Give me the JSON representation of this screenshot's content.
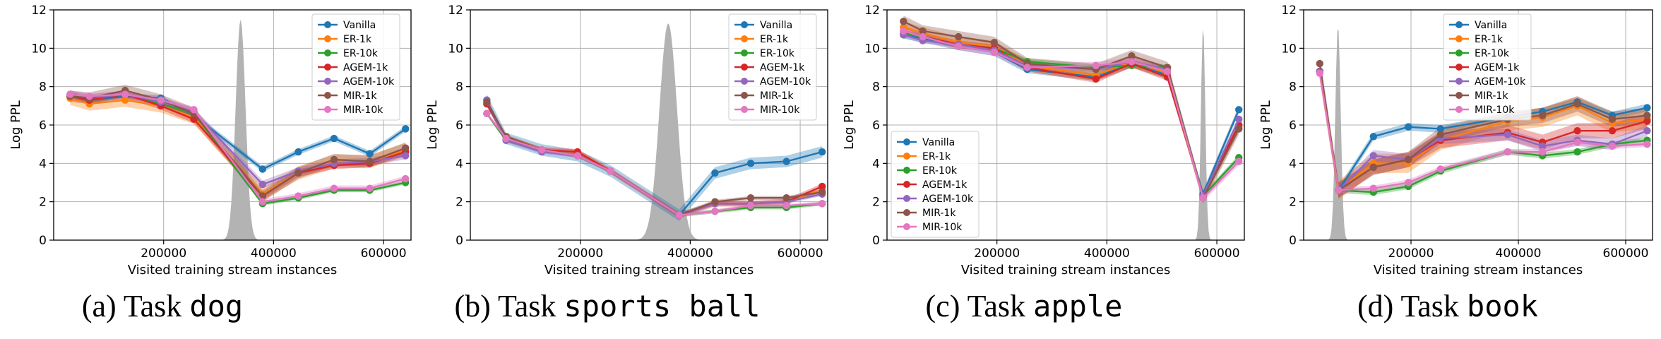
{
  "series_colors": {
    "Vanilla": "#1f77b4",
    "ER-1k": "#ff7f0e",
    "ER-10k": "#2ca02c",
    "AGEM-1k": "#d62728",
    "AGEM-10k": "#9467bd",
    "MIR-1k": "#8c564b",
    "MIR-10k": "#e377c2"
  },
  "density_color": "#b3b3b3",
  "chart_data": [
    {
      "type": "line",
      "caption_lead": "(a) Task ",
      "caption_task": "dog",
      "xlabel": "Visited training stream instances",
      "ylabel": "Log PPL",
      "xlim": [
        0,
        650000
      ],
      "ylim": [
        0,
        12
      ],
      "xticks": [
        200000,
        400000,
        600000
      ],
      "yticks": [
        0,
        2,
        4,
        6,
        8,
        10,
        12
      ],
      "grid": true,
      "legend_position": "top-right",
      "density_peak": 340000,
      "density_width": 9000,
      "density_height": 11.5,
      "series": [
        {
          "name": "Vanilla",
          "x": [
            30000,
            65000,
            130000,
            195000,
            255000,
            380000,
            445000,
            510000,
            575000,
            640000
          ],
          "y": [
            7.6,
            7.3,
            7.5,
            7.4,
            6.5,
            3.7,
            4.6,
            5.3,
            4.5,
            5.8
          ],
          "band": 0.15
        },
        {
          "name": "ER-1k",
          "x": [
            30000,
            65000,
            130000,
            195000,
            255000,
            380000,
            445000,
            510000,
            575000,
            640000
          ],
          "y": [
            7.4,
            7.1,
            7.3,
            7.0,
            6.4,
            2.4,
            3.5,
            4.1,
            4.1,
            4.7
          ],
          "band": 0.35
        },
        {
          "name": "ER-10k",
          "x": [
            30000,
            65000,
            130000,
            195000,
            255000,
            380000,
            445000,
            510000,
            575000,
            640000
          ],
          "y": [
            7.5,
            7.3,
            7.6,
            7.1,
            6.6,
            1.9,
            2.2,
            2.6,
            2.6,
            3.0
          ],
          "band": 0.1
        },
        {
          "name": "AGEM-1k",
          "x": [
            30000,
            65000,
            130000,
            195000,
            255000,
            380000,
            445000,
            510000,
            575000,
            640000
          ],
          "y": [
            7.5,
            7.3,
            7.6,
            7.0,
            6.3,
            2.3,
            3.5,
            3.9,
            4.0,
            4.6
          ],
          "band": 0.2
        },
        {
          "name": "AGEM-10k",
          "x": [
            30000,
            65000,
            130000,
            195000,
            255000,
            380000,
            445000,
            510000,
            575000,
            640000
          ],
          "y": [
            7.6,
            7.4,
            7.6,
            7.2,
            6.7,
            2.9,
            3.6,
            4.0,
            4.1,
            4.4
          ],
          "band": 0.2
        },
        {
          "name": "MIR-1k",
          "x": [
            30000,
            65000,
            130000,
            195000,
            255000,
            380000,
            445000,
            510000,
            575000,
            640000
          ],
          "y": [
            7.5,
            7.4,
            7.8,
            7.3,
            6.6,
            2.3,
            3.5,
            4.2,
            4.1,
            4.8
          ],
          "band": 0.3
        },
        {
          "name": "MIR-10k",
          "x": [
            30000,
            65000,
            130000,
            195000,
            255000,
            380000,
            445000,
            510000,
            575000,
            640000
          ],
          "y": [
            7.6,
            7.5,
            7.6,
            7.3,
            6.8,
            2.0,
            2.3,
            2.7,
            2.7,
            3.2
          ],
          "band": 0.15
        }
      ]
    },
    {
      "type": "line",
      "caption_lead": "(b) Task ",
      "caption_task": "sports ball",
      "xlabel": "Visited training stream instances",
      "ylabel": "Log PPL",
      "xlim": [
        0,
        650000
      ],
      "ylim": [
        0,
        12
      ],
      "xticks": [
        200000,
        400000,
        600000
      ],
      "yticks": [
        0,
        2,
        4,
        6,
        8,
        10,
        12
      ],
      "grid": true,
      "legend_position": "top-right",
      "density_peak": 360000,
      "density_width": 16000,
      "density_height": 11.3,
      "series": [
        {
          "name": "Vanilla",
          "x": [
            30000,
            65000,
            130000,
            195000,
            255000,
            380000,
            445000,
            510000,
            575000,
            640000
          ],
          "y": [
            7.3,
            5.3,
            4.7,
            4.4,
            3.6,
            1.3,
            3.5,
            4.0,
            4.1,
            4.6
          ],
          "band": 0.3
        },
        {
          "name": "ER-1k",
          "x": [
            30000,
            65000,
            130000,
            195000,
            255000,
            380000,
            445000,
            510000,
            575000,
            640000
          ],
          "y": [
            7.1,
            5.4,
            4.7,
            4.6,
            3.6,
            1.3,
            1.9,
            1.9,
            2.0,
            2.6
          ],
          "band": 0.1
        },
        {
          "name": "ER-10k",
          "x": [
            30000,
            65000,
            130000,
            195000,
            255000,
            380000,
            445000,
            510000,
            575000,
            640000
          ],
          "y": [
            6.6,
            5.2,
            4.7,
            4.4,
            3.6,
            1.3,
            1.5,
            1.7,
            1.7,
            1.9
          ],
          "band": 0.1
        },
        {
          "name": "AGEM-1k",
          "x": [
            30000,
            65000,
            130000,
            195000,
            255000,
            380000,
            445000,
            510000,
            575000,
            640000
          ],
          "y": [
            7.1,
            5.3,
            4.7,
            4.6,
            3.6,
            1.3,
            1.9,
            1.9,
            2.0,
            2.8
          ],
          "band": 0.15
        },
        {
          "name": "AGEM-10k",
          "x": [
            30000,
            65000,
            130000,
            195000,
            255000,
            380000,
            445000,
            510000,
            575000,
            640000
          ],
          "y": [
            7.3,
            5.2,
            4.6,
            4.4,
            3.6,
            1.3,
            1.9,
            1.9,
            2.0,
            2.4
          ],
          "band": 0.1
        },
        {
          "name": "MIR-1k",
          "x": [
            30000,
            65000,
            130000,
            195000,
            255000,
            380000,
            445000,
            510000,
            575000,
            640000
          ],
          "y": [
            7.2,
            5.4,
            4.7,
            4.4,
            3.6,
            1.3,
            2.0,
            2.2,
            2.2,
            2.5
          ],
          "band": 0.1
        },
        {
          "name": "MIR-10k",
          "x": [
            30000,
            65000,
            130000,
            195000,
            255000,
            380000,
            445000,
            510000,
            575000,
            640000
          ],
          "y": [
            6.6,
            5.3,
            4.7,
            4.4,
            3.6,
            1.3,
            1.5,
            1.8,
            1.8,
            1.9
          ],
          "band": 0.1
        }
      ]
    },
    {
      "type": "line",
      "caption_lead": "(c) Task ",
      "caption_task": "apple",
      "xlabel": "Visited training stream instances",
      "ylabel": "Log PPL",
      "xlim": [
        0,
        650000
      ],
      "ylim": [
        0,
        12
      ],
      "xticks": [
        200000,
        400000,
        600000
      ],
      "yticks": [
        0,
        2,
        4,
        6,
        8,
        10,
        12
      ],
      "grid": true,
      "legend_position": "middle-left",
      "density_peak": 575000,
      "density_width": 4000,
      "density_height": 11.2,
      "series": [
        {
          "name": "Vanilla",
          "x": [
            30000,
            65000,
            130000,
            195000,
            255000,
            380000,
            445000,
            510000,
            575000,
            640000
          ],
          "y": [
            10.7,
            10.5,
            10.1,
            9.8,
            8.9,
            8.5,
            9.2,
            8.6,
            2.4,
            6.8
          ],
          "band": 0.2
        },
        {
          "name": "ER-1k",
          "x": [
            30000,
            65000,
            130000,
            195000,
            255000,
            380000,
            445000,
            510000,
            575000,
            640000
          ],
          "y": [
            11.1,
            10.8,
            10.3,
            10.1,
            9.1,
            8.6,
            9.3,
            8.7,
            2.3,
            5.9
          ],
          "band": 0.3
        },
        {
          "name": "ER-10k",
          "x": [
            30000,
            65000,
            130000,
            195000,
            255000,
            380000,
            445000,
            510000,
            575000,
            640000
          ],
          "y": [
            10.8,
            10.6,
            10.2,
            10.0,
            9.3,
            9.0,
            9.1,
            9.0,
            2.3,
            4.3
          ],
          "band": 0.15
        },
        {
          "name": "AGEM-1k",
          "x": [
            30000,
            65000,
            130000,
            195000,
            255000,
            380000,
            445000,
            510000,
            575000,
            640000
          ],
          "y": [
            10.9,
            10.6,
            10.2,
            10.0,
            9.0,
            8.4,
            9.2,
            8.5,
            2.3,
            6.0
          ],
          "band": 0.2
        },
        {
          "name": "AGEM-10k",
          "x": [
            30000,
            65000,
            130000,
            195000,
            255000,
            380000,
            445000,
            510000,
            575000,
            640000
          ],
          "y": [
            10.7,
            10.4,
            10.2,
            9.9,
            9.1,
            8.9,
            9.3,
            8.9,
            2.3,
            6.3
          ],
          "band": 0.15
        },
        {
          "name": "MIR-1k",
          "x": [
            30000,
            65000,
            130000,
            195000,
            255000,
            380000,
            445000,
            510000,
            575000,
            640000
          ],
          "y": [
            11.4,
            10.9,
            10.6,
            10.3,
            9.2,
            8.9,
            9.6,
            9.0,
            2.2,
            5.8
          ],
          "band": 0.3
        },
        {
          "name": "MIR-10k",
          "x": [
            30000,
            65000,
            130000,
            195000,
            255000,
            380000,
            445000,
            510000,
            575000,
            640000
          ],
          "y": [
            10.9,
            10.6,
            10.1,
            9.8,
            9.0,
            9.1,
            9.3,
            8.8,
            2.2,
            4.1
          ],
          "band": 0.2
        }
      ]
    },
    {
      "type": "line",
      "caption_lead": "(d) Task ",
      "caption_task": "book",
      "xlabel": "Visited training stream instances",
      "ylabel": "Log PPL",
      "xlim": [
        0,
        650000
      ],
      "ylim": [
        0,
        12
      ],
      "xticks": [
        200000,
        400000,
        600000
      ],
      "yticks": [
        0,
        2,
        4,
        6,
        8,
        10,
        12
      ],
      "grid": true,
      "legend_position": "top-left",
      "density_peak": 64000,
      "density_width": 5000,
      "density_height": 11.2,
      "series": [
        {
          "name": "Vanilla",
          "x": [
            30000,
            65000,
            130000,
            195000,
            255000,
            380000,
            445000,
            510000,
            575000,
            640000
          ],
          "y": [
            8.8,
            2.6,
            5.4,
            5.9,
            5.8,
            6.4,
            6.7,
            7.2,
            6.5,
            6.9
          ],
          "band": 0.2
        },
        {
          "name": "ER-1k",
          "x": [
            30000,
            65000,
            130000,
            195000,
            255000,
            380000,
            445000,
            510000,
            575000,
            640000
          ],
          "y": [
            8.8,
            2.6,
            4.0,
            4.0,
            5.2,
            6.2,
            6.4,
            7.0,
            6.1,
            6.3
          ],
          "band": 0.5
        },
        {
          "name": "ER-10k",
          "x": [
            30000,
            65000,
            130000,
            195000,
            255000,
            380000,
            445000,
            510000,
            575000,
            640000
          ],
          "y": [
            8.8,
            2.6,
            2.5,
            2.8,
            3.6,
            4.6,
            4.4,
            4.6,
            5.0,
            5.2
          ],
          "band": 0.15
        },
        {
          "name": "AGEM-1k",
          "x": [
            30000,
            65000,
            130000,
            195000,
            255000,
            380000,
            445000,
            510000,
            575000,
            640000
          ],
          "y": [
            8.8,
            2.6,
            3.8,
            4.2,
            5.2,
            5.6,
            5.1,
            5.7,
            5.7,
            6.2
          ],
          "band": 0.4
        },
        {
          "name": "AGEM-10k",
          "x": [
            30000,
            65000,
            130000,
            195000,
            255000,
            380000,
            445000,
            510000,
            575000,
            640000
          ],
          "y": [
            8.8,
            2.6,
            4.4,
            4.2,
            5.3,
            5.5,
            4.9,
            5.2,
            5.0,
            5.7
          ],
          "band": 0.3
        },
        {
          "name": "MIR-1k",
          "x": [
            30000,
            65000,
            130000,
            195000,
            255000,
            380000,
            445000,
            510000,
            575000,
            640000
          ],
          "y": [
            9.2,
            2.6,
            3.8,
            4.2,
            5.5,
            6.3,
            6.5,
            7.1,
            6.3,
            6.5
          ],
          "band": 0.4
        },
        {
          "name": "MIR-10k",
          "x": [
            30000,
            65000,
            130000,
            195000,
            255000,
            380000,
            445000,
            510000,
            575000,
            640000
          ],
          "y": [
            8.7,
            2.6,
            2.7,
            3.0,
            3.7,
            4.6,
            4.6,
            5.1,
            4.9,
            5.0
          ],
          "band": 0.15
        }
      ]
    }
  ]
}
